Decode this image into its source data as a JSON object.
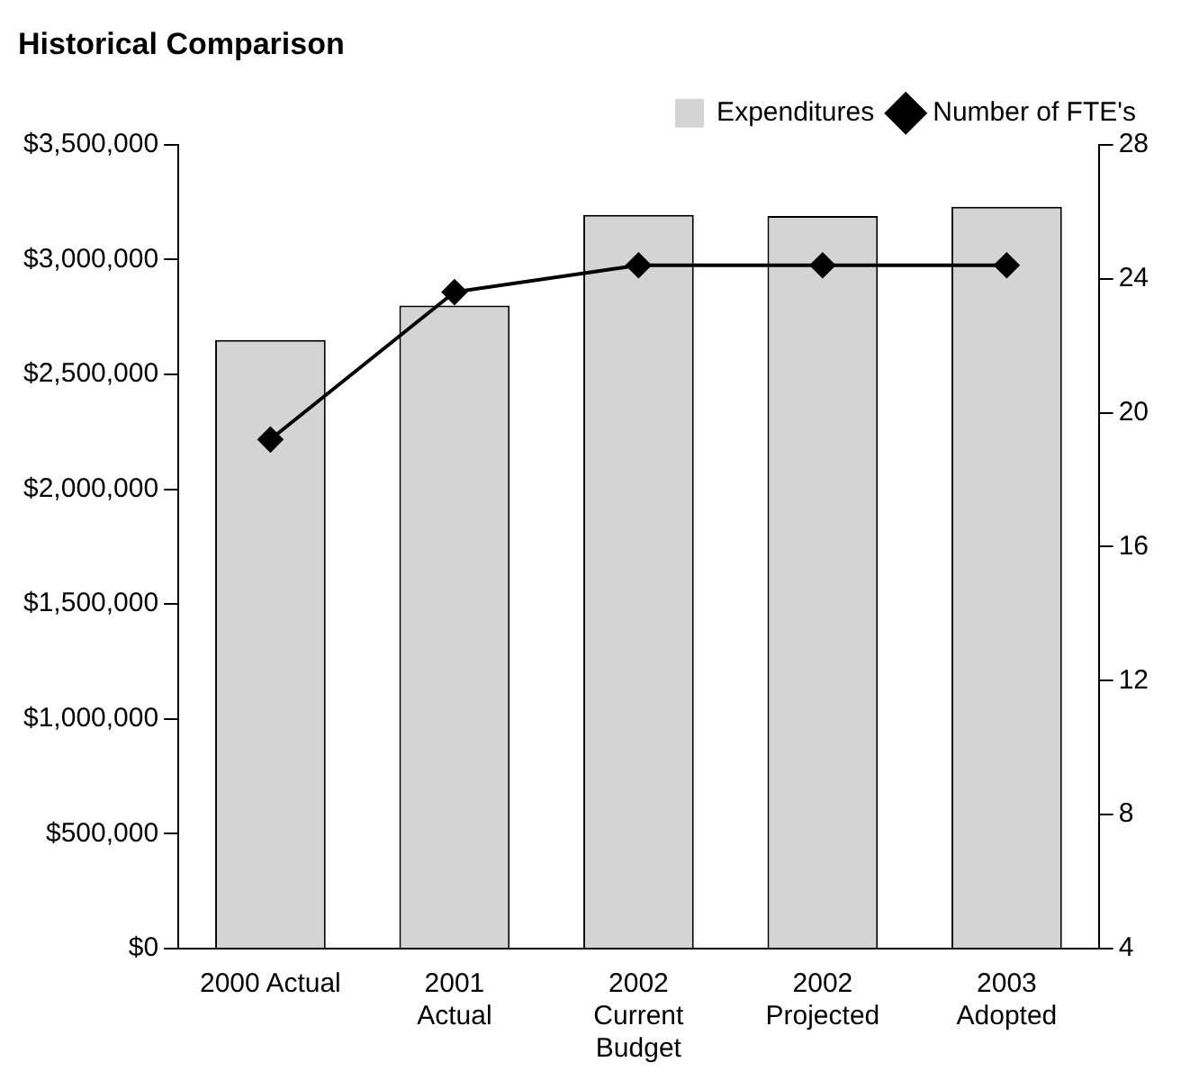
{
  "chart_data": {
    "type": "bar",
    "title": "Historical Comparison",
    "categories": [
      "2000 Actual",
      "2001\nActual",
      "2002\nCurrent\nBudget",
      "2002\nProjected",
      "2003\nAdopted"
    ],
    "series": [
      {
        "name": "Expenditures",
        "color": "#d4d4d4",
        "values": [
          2650000,
          2800000,
          3195000,
          3190000,
          3230000
        ]
      },
      {
        "name": "Number of FTE's",
        "type": "line",
        "axis": "y2",
        "color": "#000000",
        "marker": "diamond",
        "values": [
          19.2,
          23.6,
          24.4,
          24.4,
          24.4
        ]
      }
    ],
    "ylim": [
      0,
      3500000
    ],
    "yticks": [
      {
        "value": 0,
        "label": "$0"
      },
      {
        "value": 500000,
        "label": "$500,000"
      },
      {
        "value": 1000000,
        "label": "$1,000,000"
      },
      {
        "value": 1500000,
        "label": "$1,500,000"
      },
      {
        "value": 2000000,
        "label": "$2,000,000"
      },
      {
        "value": 2500000,
        "label": "$2,500,000"
      },
      {
        "value": 3000000,
        "label": "$3,000,000"
      },
      {
        "value": 3500000,
        "label": "$3,500,000"
      }
    ],
    "y2lim": [
      4,
      28
    ],
    "y2ticks": [
      4,
      8,
      12,
      16,
      20,
      24,
      28
    ],
    "grid": false,
    "legend": "top right"
  }
}
